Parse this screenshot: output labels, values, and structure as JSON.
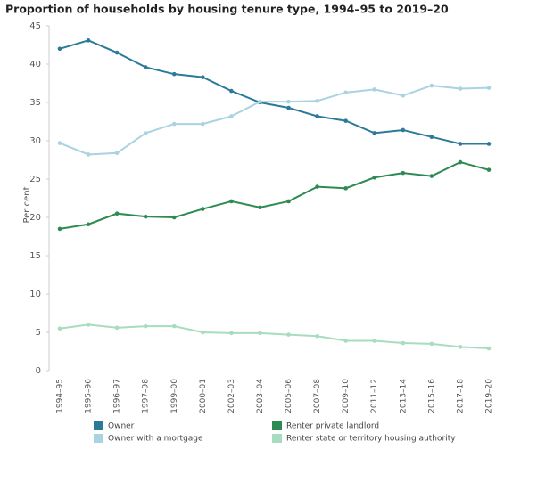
{
  "chart_data": {
    "type": "line",
    "title": "Proportion of households by housing tenure type, 1994–95 to 2019–20",
    "y_label": "Per cent",
    "categories": [
      "1994–95",
      "1995–96",
      "1996–97",
      "1997–98",
      "1999–00",
      "2000–01",
      "2002–03",
      "2003–04",
      "2005–06",
      "2007–08",
      "2009–10",
      "2011–12",
      "2013–14",
      "2015–16",
      "2017–18",
      "2019–20"
    ],
    "series": [
      {
        "name": "Owner",
        "color": "#2b7b98",
        "values": [
          42.0,
          43.1,
          41.5,
          39.6,
          38.7,
          38.3,
          36.5,
          35.0,
          34.3,
          33.2,
          32.6,
          31.0,
          31.4,
          30.5,
          29.6,
          29.6
        ]
      },
      {
        "name": "Owner with a mortgage",
        "color": "#a9d3e1",
        "values": [
          29.7,
          28.2,
          28.4,
          31.0,
          32.2,
          32.2,
          33.2,
          35.1,
          35.1,
          35.2,
          36.3,
          36.7,
          35.9,
          37.2,
          36.8,
          36.9
        ]
      },
      {
        "name": "Renter private landlord",
        "color": "#2c8a52",
        "values": [
          18.5,
          19.1,
          20.5,
          20.1,
          20.0,
          21.1,
          22.1,
          21.3,
          22.1,
          24.0,
          23.8,
          25.2,
          25.8,
          25.4,
          27.2,
          26.2
        ]
      },
      {
        "name": "Renter state or territory housing authority",
        "color": "#a8dcbf",
        "values": [
          5.5,
          6.0,
          5.6,
          5.8,
          5.8,
          5.0,
          4.9,
          4.9,
          4.7,
          4.5,
          3.9,
          3.9,
          3.6,
          3.5,
          3.1,
          2.9
        ]
      }
    ],
    "ylim": [
      0,
      45
    ],
    "yticks": [
      0,
      5,
      10,
      15,
      20,
      25,
      30,
      35,
      40,
      45
    ],
    "grid": false
  }
}
